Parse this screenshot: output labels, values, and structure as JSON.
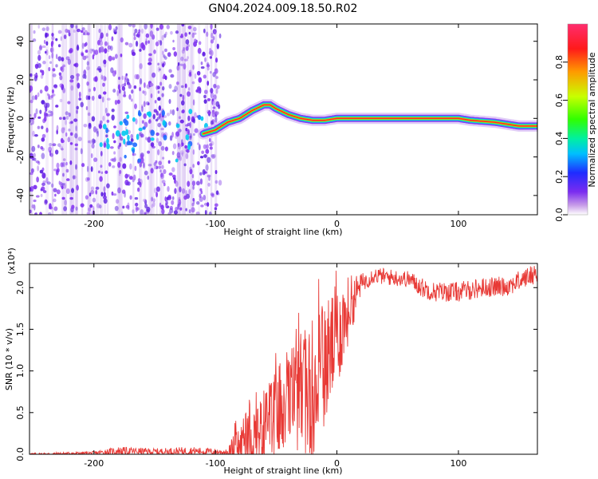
{
  "title": "GN04.2024.009.18.50.R02",
  "chart_data": [
    {
      "type": "heatmap",
      "xlabel": "Height of straight line (km)",
      "ylabel": "Frequency (Hz)",
      "xlim": [
        -253,
        165
      ],
      "ylim": [
        -50,
        49
      ],
      "xticks": [
        -200,
        -100,
        0,
        100
      ],
      "yticks": [
        -40,
        -20,
        0,
        20,
        40
      ],
      "xtick_labels": [
        "-200",
        "-100",
        "0",
        "100"
      ],
      "ytick_labels": [
        "-40",
        "-20",
        "0",
        "20",
        "40"
      ],
      "colorbar": {
        "label": "Normalized spectral amplitude",
        "range": [
          0.0,
          1.0
        ],
        "ticks": [
          "0.0",
          "0.2",
          "0.4",
          "0.6",
          "0.8"
        ],
        "colormap": [
          "#ffffff",
          "#b98ae8",
          "#7b2cf0",
          "#1f2cff",
          "#00bfff",
          "#00f080",
          "#40ff00",
          "#c8ff00",
          "#ff9a00",
          "#ff1a1a",
          "#ff2d6e"
        ]
      },
      "ridge": {
        "x": [
          -110,
          -100,
          -90,
          -80,
          -70,
          -60,
          -55,
          -50,
          -40,
          -30,
          -20,
          -10,
          0,
          10,
          50,
          100,
          110,
          130,
          150,
          165
        ],
        "freq": [
          -8,
          -6,
          -2,
          0,
          4,
          7,
          7,
          5,
          2,
          0,
          -1,
          -1,
          0,
          0,
          0,
          0,
          -1,
          -2,
          -4,
          -4
        ]
      },
      "noise_region_x": [
        -253,
        -100
      ]
    },
    {
      "type": "line",
      "xlabel": "Height of straight line (km)",
      "ylabel": "SNR (10 * v/v)",
      "multiplier": "(x10⁴)",
      "xlim": [
        -253,
        165
      ],
      "ylim": [
        0,
        22900
      ],
      "xticks": [
        -200,
        -100,
        0,
        100
      ],
      "yticks": [
        0,
        5000,
        10000,
        15000,
        20000
      ],
      "xtick_labels": [
        "-200",
        "-100",
        "0",
        "100"
      ],
      "ytick_labels": [
        "0.0",
        "0.5",
        "1.0",
        "1.5",
        "2.0"
      ],
      "color": "#e83a36",
      "envelope": {
        "x": [
          -253,
          -200,
          -180,
          -150,
          -120,
          -90,
          -85,
          -70,
          -55,
          -45,
          -40,
          -30,
          -20,
          -10,
          0,
          10,
          20,
          30,
          40,
          60,
          70,
          80,
          100,
          120,
          140,
          150,
          160,
          165
        ],
        "mean": [
          0,
          150,
          400,
          300,
          400,
          250,
          600,
          2000,
          4000,
          5500,
          6500,
          7500,
          8000,
          11000,
          14000,
          17500,
          20500,
          21500,
          21300,
          21000,
          20000,
          19500,
          19500,
          20000,
          20200,
          20800,
          21500,
          21800
        ],
        "spread": [
          150,
          200,
          500,
          400,
          500,
          300,
          2000,
          3500,
          5000,
          6000,
          6500,
          7000,
          8500,
          7500,
          6500,
          4000,
          1200,
          1000,
          1000,
          1000,
          1200,
          1200,
          1200,
          1200,
          1200,
          1200,
          1200,
          1200
        ]
      }
    }
  ]
}
